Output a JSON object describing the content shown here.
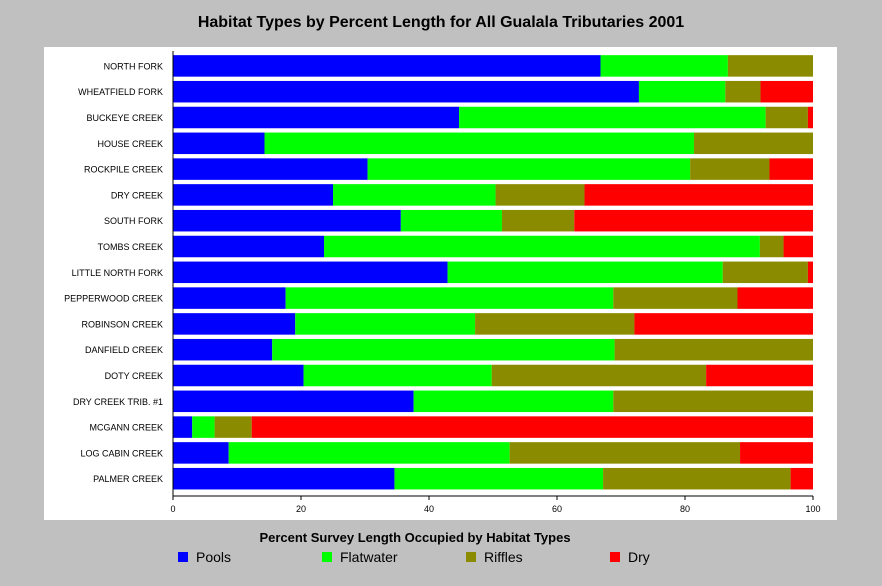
{
  "title": "Habitat Types by Percent Length for All Gualala Tributaries 2001",
  "chart_data": {
    "type": "bar",
    "orientation": "horizontal",
    "stacked": true,
    "title": "Habitat Types by Percent Length for All Gualala Tributaries 2001",
    "xlabel": "Percent Survey Length Occupied by Habitat Types",
    "ylabel": "",
    "xlim": [
      0,
      100
    ],
    "xticks": [
      0,
      20,
      40,
      60,
      80,
      100
    ],
    "grid": false,
    "legend_position": "bottom",
    "categories": [
      "NORTH FORK",
      "WHEATFIELD FORK",
      "BUCKEYE CREEK",
      "HOUSE CREEK",
      "ROCKPILE CREEK",
      "DRY CREEK",
      "SOUTH FORK",
      "TOMBS CREEK",
      "LITTLE NORTH FORK",
      "PEPPERWOOD CREEK",
      "ROBINSON CREEK",
      "DANFIELD CREEK",
      "DOTY CREEK",
      "DRY CREEK TRIB. #1",
      "MCGANN CREEK",
      "LOG CABIN CREEK",
      "PALMER CREEK"
    ],
    "series": [
      {
        "name": "Pools",
        "color": "#0000ff",
        "values": [
          66.8,
          72.8,
          44.7,
          14.3,
          30.4,
          25.0,
          35.6,
          23.6,
          42.9,
          17.6,
          19.1,
          15.5,
          20.4,
          37.6,
          3.0,
          8.7,
          34.6
        ]
      },
      {
        "name": "Flatwater",
        "color": "#00ff00",
        "values": [
          19.9,
          13.5,
          47.9,
          67.1,
          50.4,
          25.4,
          15.8,
          68.1,
          43.0,
          51.2,
          28.1,
          53.5,
          29.4,
          31.2,
          3.5,
          43.9,
          32.6
        ]
      },
      {
        "name": "Riffles",
        "color": "#8b8b00",
        "values": [
          13.3,
          5.5,
          6.6,
          18.6,
          12.4,
          13.9,
          11.3,
          3.7,
          13.3,
          19.4,
          24.9,
          31.0,
          33.5,
          31.2,
          5.8,
          36.0,
          29.3
        ]
      },
      {
        "name": "Dry",
        "color": "#ff0000",
        "values": [
          0,
          8.2,
          0.8,
          0,
          6.8,
          35.7,
          37.3,
          4.6,
          0.8,
          11.8,
          27.9,
          0,
          16.7,
          0,
          87.7,
          11.4,
          3.5
        ]
      }
    ]
  }
}
